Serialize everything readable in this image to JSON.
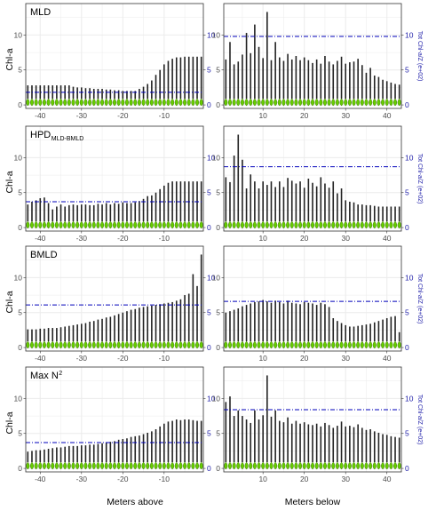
{
  "chart_data": {
    "type": "violin",
    "x_label_left": "Meters above",
    "x_label_right": "Meters below",
    "y_label_left": "Chl-a",
    "y_label_right": "Tot Chl-a/Z (e+02)",
    "x_ticks_left": [
      "-40",
      "-30",
      "-20",
      "-10"
    ],
    "x_ticks_right": [
      "10",
      "20",
      "30",
      "40"
    ],
    "y_ticks_left": [
      "0",
      "5",
      "10"
    ],
    "y_ticks_right": [
      "0",
      "5",
      "10"
    ],
    "xlim_left": [
      -43.5,
      -0.5
    ],
    "xlim_right": [
      0.5,
      43.5
    ],
    "ylim": [
      -0.5,
      14.5
    ],
    "ylim_right": [
      -0.5,
      14.5
    ],
    "colors": {
      "violin": "#66cc00",
      "line": "#222222",
      "ref_line": "#0000bb",
      "grid": "#ebebeb",
      "panel_border": "#333333"
    },
    "panels": [
      {
        "row": 0,
        "side": "left",
        "label": "MLD",
        "label_sub": "",
        "ref_line_total": 1.8,
        "top_ranges": [
          2.8,
          2.8,
          2.8,
          2.8,
          2.8,
          2.8,
          2.8,
          2.8,
          2.8,
          2.8,
          2.8,
          2.6,
          2.5,
          2.5,
          2.4,
          2.4,
          2.3,
          2.3,
          2.3,
          2.2,
          2.2,
          2.1,
          2.1,
          2.0,
          2.0,
          2.0,
          2.0,
          2.3,
          2.6,
          3.0,
          3.5,
          4.3,
          5.0,
          5.8,
          6.3,
          6.6,
          6.8,
          6.8,
          6.9,
          6.9,
          6.9,
          6.9,
          6.9
        ]
      },
      {
        "row": 0,
        "side": "right",
        "label": "",
        "label_sub": "",
        "ref_line_total": 9.8,
        "top_ranges": [
          6.5,
          9.0,
          5.8,
          6.2,
          7.2,
          10.3,
          7.4,
          11.5,
          8.3,
          6.7,
          13.3,
          6.4,
          9.0,
          6.8,
          6.3,
          7.3,
          6.5,
          7.0,
          6.4,
          6.8,
          6.4,
          6.0,
          6.5,
          5.9,
          7.0,
          6.2,
          5.8,
          6.3,
          6.9,
          5.9,
          6.1,
          6.2,
          6.6,
          5.7,
          4.6,
          5.3,
          4.2,
          4.0,
          3.6,
          3.4,
          3.2,
          3.0,
          2.9
        ]
      },
      {
        "row": 1,
        "side": "left",
        "label": "HPD",
        "label_sub": "MLD-BMLD",
        "ref_line_total": 3.7,
        "top_ranges": [
          3.3,
          3.7,
          3.9,
          4.2,
          4.3,
          3.5,
          2.6,
          3.0,
          3.3,
          3.0,
          3.2,
          3.3,
          3.2,
          3.3,
          3.3,
          3.2,
          3.2,
          3.4,
          3.3,
          3.5,
          3.3,
          3.5,
          3.4,
          3.6,
          3.5,
          3.5,
          3.6,
          3.8,
          4.1,
          4.5,
          4.6,
          5.0,
          5.5,
          6.0,
          6.4,
          6.6,
          6.6,
          6.6,
          6.6,
          6.6,
          6.6,
          6.6,
          6.6
        ]
      },
      {
        "row": 1,
        "side": "right",
        "label": "",
        "label_sub": "",
        "ref_line_total": 8.7,
        "top_ranges": [
          7.2,
          6.5,
          10.3,
          13.3,
          9.7,
          5.6,
          7.6,
          6.6,
          5.6,
          6.6,
          6.1,
          6.6,
          5.8,
          6.6,
          5.8,
          7.1,
          6.7,
          6.3,
          6.6,
          5.7,
          7.0,
          6.4,
          5.9,
          7.2,
          6.3,
          5.7,
          6.6,
          4.9,
          5.6,
          3.9,
          3.7,
          3.6,
          3.3,
          3.3,
          3.2,
          3.2,
          3.1,
          3.0,
          3.0,
          3.0,
          3.0,
          3.0,
          3.0
        ]
      },
      {
        "row": 2,
        "side": "left",
        "label": "BMLD",
        "label_sub": "",
        "ref_line_total": 6.1,
        "top_ranges": [
          2.6,
          2.6,
          2.6,
          2.7,
          2.7,
          2.8,
          2.8,
          2.8,
          2.9,
          3.0,
          3.1,
          3.2,
          3.3,
          3.4,
          3.5,
          3.7,
          3.8,
          4.0,
          4.1,
          4.3,
          4.4,
          4.6,
          4.8,
          5.0,
          5.2,
          5.4,
          5.5,
          5.7,
          5.8,
          5.9,
          6.0,
          6.1,
          6.2,
          6.3,
          6.4,
          6.5,
          6.7,
          6.9,
          7.5,
          7.7,
          10.5,
          8.8,
          13.3
        ]
      },
      {
        "row": 2,
        "side": "right",
        "label": "",
        "label_sub": "",
        "ref_line_total": 6.6,
        "top_ranges": [
          5.0,
          5.2,
          5.4,
          5.6,
          5.9,
          6.1,
          6.3,
          6.5,
          6.6,
          6.8,
          6.6,
          6.4,
          6.7,
          6.5,
          6.3,
          6.7,
          6.4,
          6.3,
          6.2,
          6.5,
          6.4,
          6.3,
          6.1,
          6.4,
          6.2,
          5.8,
          4.2,
          3.8,
          3.5,
          3.2,
          3.0,
          3.0,
          3.1,
          3.2,
          3.3,
          3.4,
          3.6,
          3.8,
          4.0,
          4.2,
          4.4,
          4.5,
          2.2
        ]
      },
      {
        "row": 3,
        "side": "left",
        "label": "Max N",
        "label_sub": "2",
        "ref_line_total": 3.7,
        "top_ranges": [
          2.4,
          2.5,
          2.6,
          2.6,
          2.7,
          2.8,
          2.9,
          3.0,
          3.0,
          3.1,
          3.2,
          3.2,
          3.2,
          3.3,
          3.3,
          3.4,
          3.4,
          3.5,
          3.6,
          3.7,
          3.8,
          3.9,
          4.1,
          4.2,
          4.3,
          4.5,
          4.6,
          4.7,
          4.9,
          5.1,
          5.3,
          5.6,
          6.0,
          6.4,
          6.7,
          6.8,
          7.0,
          6.9,
          7.0,
          7.0,
          6.9,
          6.8,
          6.8
        ]
      },
      {
        "row": 3,
        "side": "right",
        "label": "",
        "label_sub": "",
        "ref_line_total": 8.4,
        "top_ranges": [
          9.5,
          10.3,
          7.5,
          8.3,
          7.5,
          7.0,
          6.5,
          8.3,
          7.0,
          7.6,
          13.3,
          7.4,
          8.3,
          6.8,
          6.6,
          7.3,
          6.4,
          6.8,
          6.4,
          6.6,
          6.3,
          6.2,
          6.4,
          6.0,
          6.5,
          6.2,
          5.8,
          6.1,
          6.7,
          6.0,
          6.1,
          5.9,
          6.3,
          5.8,
          5.5,
          5.6,
          5.3,
          5.1,
          4.9,
          4.8,
          4.6,
          4.5,
          4.4
        ]
      }
    ]
  }
}
